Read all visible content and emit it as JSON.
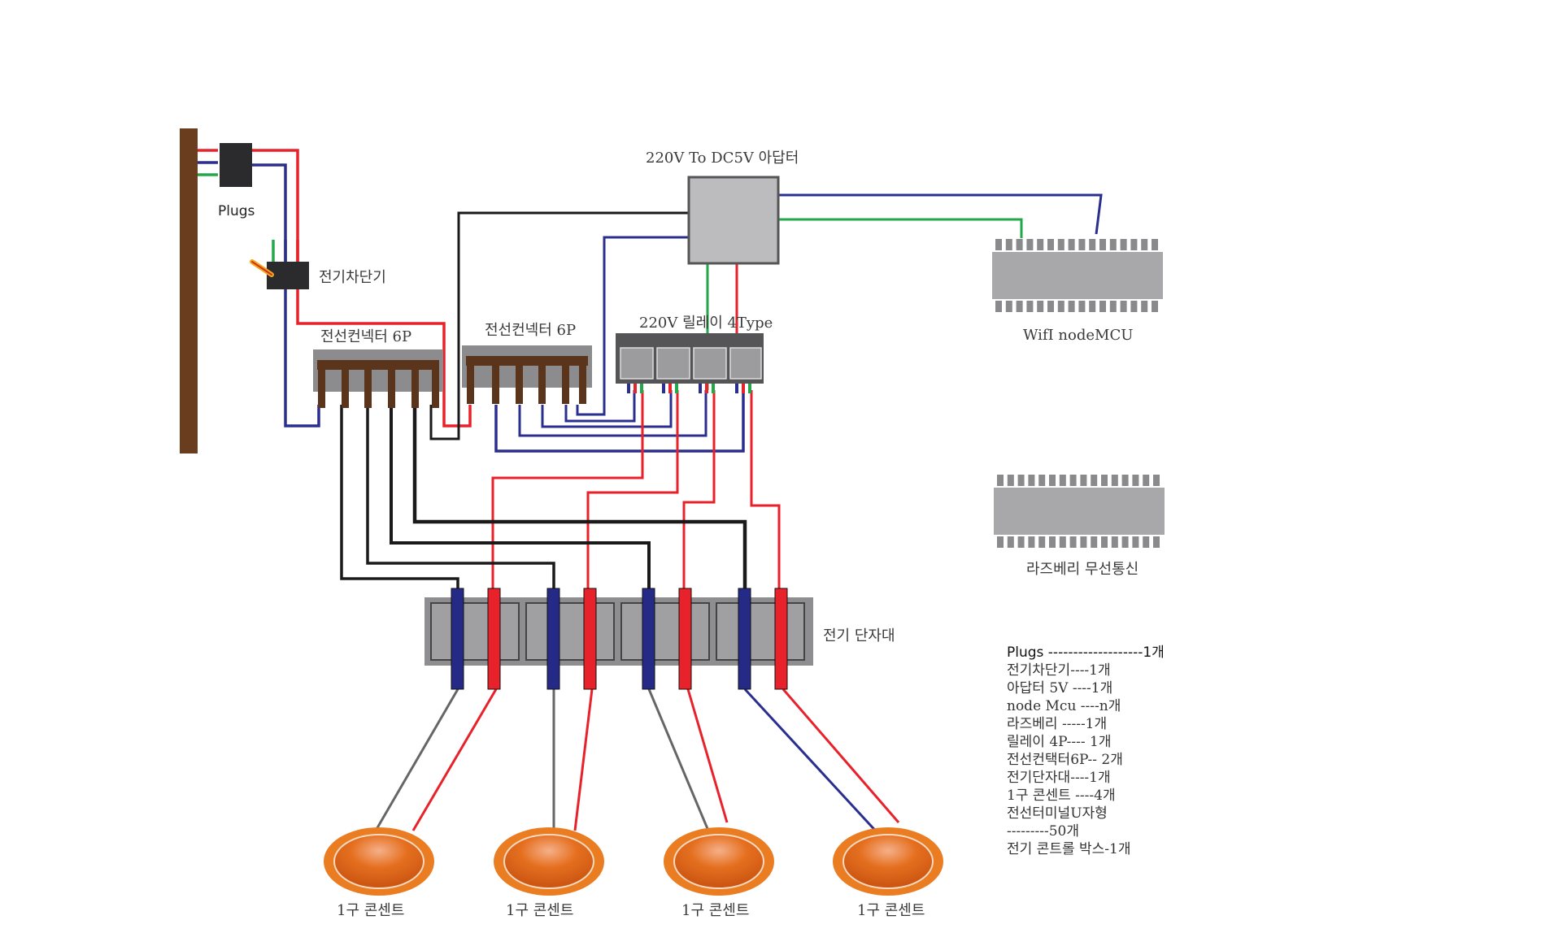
{
  "labels": {
    "plugs": "Plugs",
    "breaker": "전기차단기",
    "adapter": "220V To DC5V 아답터",
    "connector_left": "전선컨넥터 6P",
    "connector_right": "전선컨넥터 6P",
    "relay": "220V 릴레이 4Type",
    "wifi": "WifI nodeMCU",
    "raspberry": "라즈베리 무선통신",
    "terminal_block": "전기 단자대",
    "outlets": [
      "1구 콘센트",
      "1구 콘센트",
      "1구 콘센트",
      "1구 콘센트"
    ]
  },
  "parts_list": [
    "Plugs -------------------1개",
    "전기차단기----1개",
    "아답터 5V ----1개",
    "node Mcu ----n개",
    "라즈베리 -----1개",
    "릴레이 4P---- 1개",
    "전선컨택터6P-- 2개",
    "전기단자대----1개",
    "1구 콘센트 ----4개",
    "전선터미널U자형",
    "---------50개",
    "전기 콘트롤 박스-1개"
  ],
  "colors": {
    "red": "#e8222a",
    "blue": "#2a2f8f",
    "green": "#22a84a",
    "black": "#1a1a1a",
    "gray": "#666666",
    "post": "#6b3d1f",
    "orange": "#ea7d22"
  }
}
